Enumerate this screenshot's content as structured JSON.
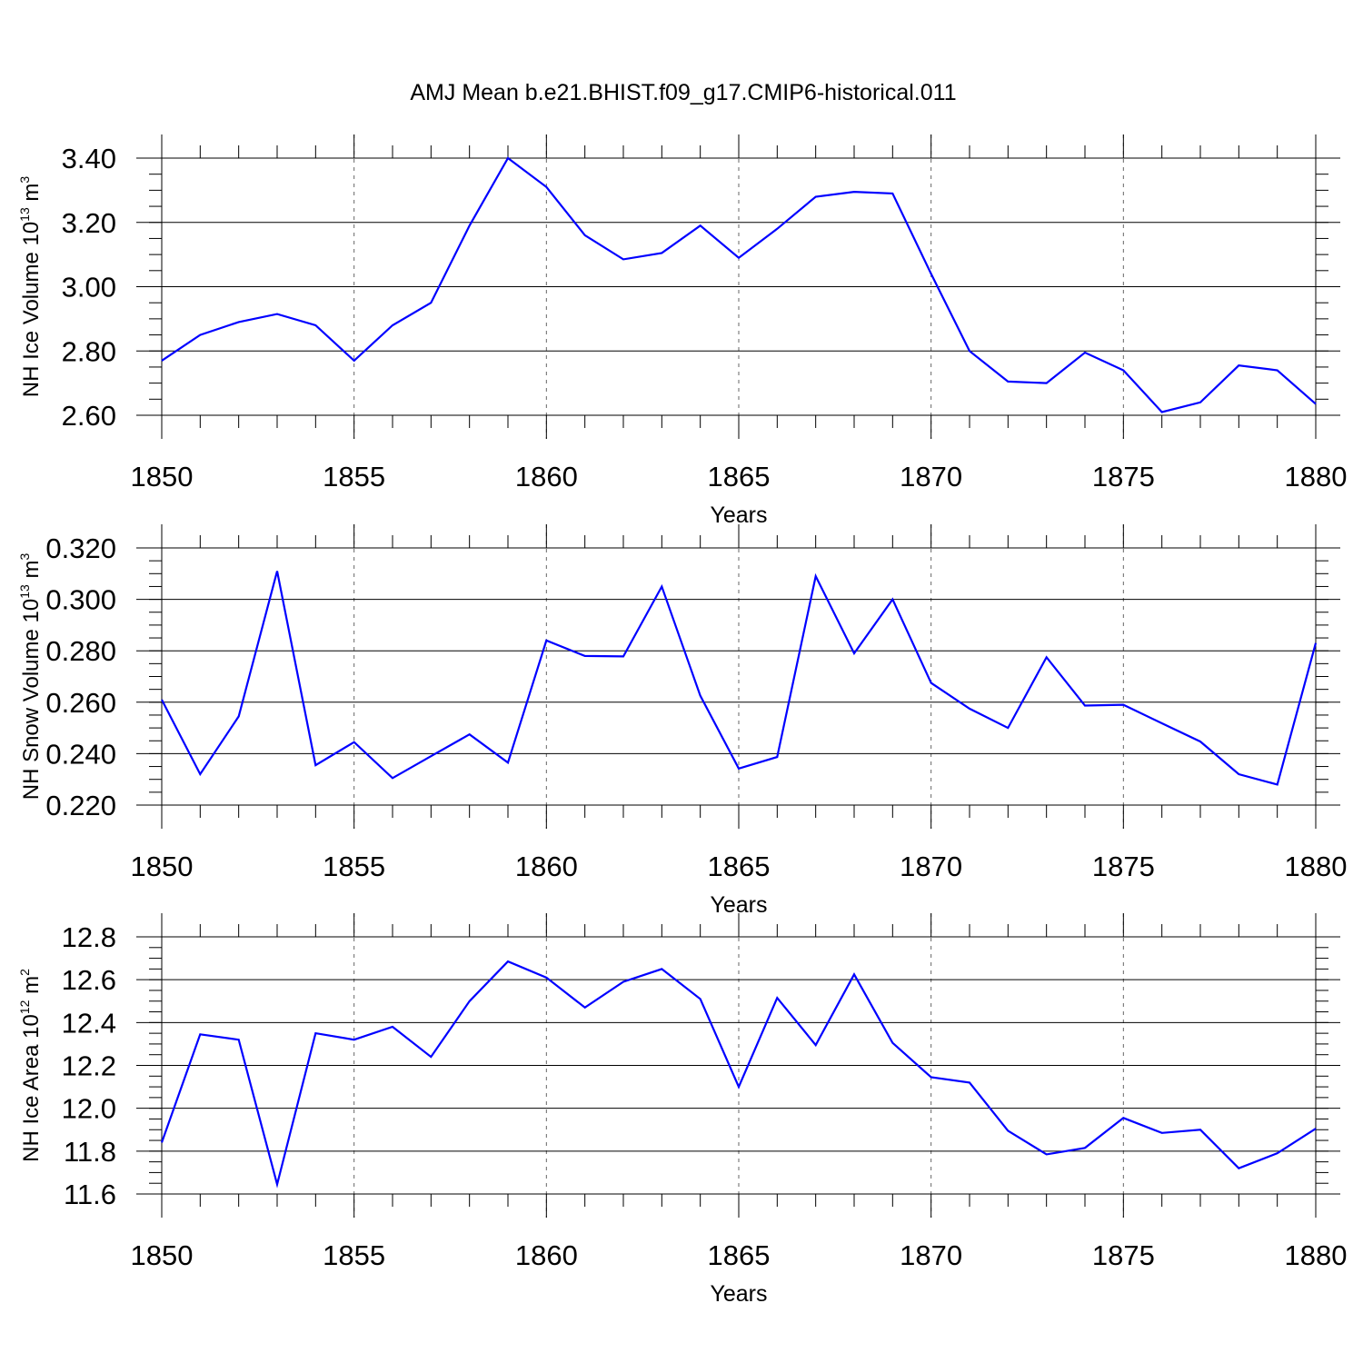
{
  "title": "AMJ Mean b.e21.BHIST.f09_g17.CMIP6-historical.011",
  "x_tick_labels": [
    "1850",
    "1855",
    "1860",
    "1865",
    "1870",
    "1875",
    "1880"
  ],
  "colors": {
    "series": "#0000ff",
    "axis": "#000000",
    "grid": "#666666"
  },
  "chart_data": [
    {
      "type": "line",
      "ylabel": "NH Ice Volume 10",
      "ylabel_exp": "13",
      "ylabel_unit": " m",
      "ylabel_unit_exp": "3",
      "xlabel": "Years",
      "xlim": [
        1850,
        1880
      ],
      "ylim": [
        2.6,
        3.4
      ],
      "y_ticks": [
        "2.60",
        "2.80",
        "3.00",
        "3.20",
        "3.40"
      ],
      "x": [
        1850,
        1851,
        1852,
        1853,
        1854,
        1855,
        1856,
        1857,
        1858,
        1859,
        1860,
        1861,
        1862,
        1863,
        1864,
        1865,
        1866,
        1867,
        1868,
        1869,
        1870,
        1871,
        1872,
        1873,
        1874,
        1875,
        1876,
        1877,
        1878,
        1879,
        1880
      ],
      "values": [
        2.77,
        2.85,
        2.89,
        2.915,
        2.88,
        2.77,
        2.88,
        2.95,
        3.19,
        3.4,
        3.31,
        3.16,
        3.085,
        3.105,
        3.19,
        3.09,
        3.18,
        3.28,
        3.295,
        3.29,
        3.04,
        2.8,
        2.705,
        2.7,
        2.795,
        2.74,
        2.61,
        2.64,
        2.755,
        2.74,
        2.635
      ]
    },
    {
      "type": "line",
      "ylabel": "NH Snow Volume 10",
      "ylabel_exp": "13",
      "ylabel_unit": " m",
      "ylabel_unit_exp": "3",
      "xlabel": "Years",
      "xlim": [
        1850,
        1880
      ],
      "ylim": [
        0.22,
        0.32
      ],
      "y_ticks": [
        "0.220",
        "0.240",
        "0.260",
        "0.280",
        "0.300",
        "0.320"
      ],
      "x": [
        1850,
        1851,
        1852,
        1853,
        1854,
        1855,
        1856,
        1857,
        1858,
        1859,
        1860,
        1861,
        1862,
        1863,
        1864,
        1865,
        1866,
        1867,
        1868,
        1869,
        1870,
        1871,
        1872,
        1873,
        1874,
        1875,
        1876,
        1877,
        1878,
        1879,
        1880
      ],
      "values": [
        0.261,
        0.232,
        0.2545,
        0.311,
        0.2355,
        0.2445,
        0.2305,
        0.239,
        0.2475,
        0.2365,
        0.284,
        0.278,
        0.2778,
        0.305,
        0.2625,
        0.2342,
        0.2387,
        0.309,
        0.279,
        0.3,
        0.2675,
        0.2575,
        0.25,
        0.2775,
        0.2587,
        0.259,
        0.2518,
        0.2447,
        0.232,
        0.228,
        0.283
      ]
    },
    {
      "type": "line",
      "ylabel": "NH Ice Area 10",
      "ylabel_exp": "12",
      "ylabel_unit": " m",
      "ylabel_unit_exp": "2",
      "xlabel": "Years",
      "xlim": [
        1850,
        1880
      ],
      "ylim": [
        11.6,
        12.8
      ],
      "y_ticks": [
        "11.6",
        "11.8",
        "12.0",
        "12.2",
        "12.4",
        "12.6",
        "12.8"
      ],
      "x": [
        1850,
        1851,
        1852,
        1853,
        1854,
        1855,
        1856,
        1857,
        1858,
        1859,
        1860,
        1861,
        1862,
        1863,
        1864,
        1865,
        1866,
        1867,
        1868,
        1869,
        1870,
        1871,
        1872,
        1873,
        1874,
        1875,
        1876,
        1877,
        1878,
        1879,
        1880
      ],
      "values": [
        11.84,
        12.345,
        12.32,
        11.645,
        12.35,
        12.32,
        12.38,
        12.24,
        12.5,
        12.685,
        12.61,
        12.47,
        12.59,
        12.65,
        12.51,
        12.1,
        12.515,
        12.295,
        12.625,
        12.305,
        12.145,
        12.12,
        11.895,
        11.785,
        11.815,
        11.955,
        11.885,
        11.9,
        11.72,
        11.79,
        11.905
      ]
    }
  ]
}
